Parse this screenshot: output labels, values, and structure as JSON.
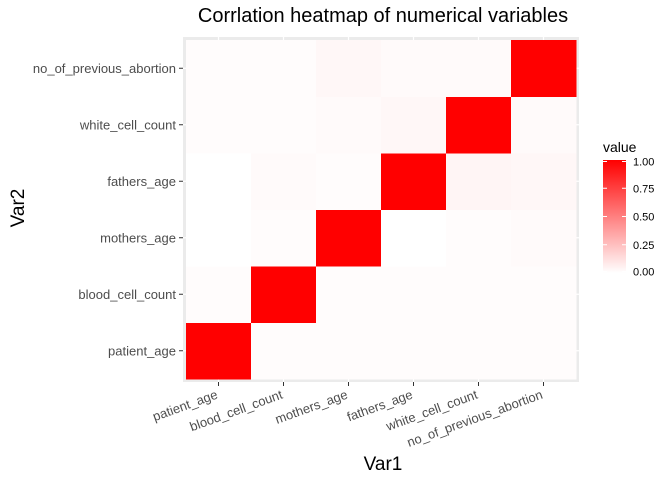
{
  "chart_data": {
    "type": "heatmap",
    "title": "Corrlation heatmap of numerical variables",
    "xlabel": "Var1",
    "ylabel": "Var2",
    "x_categories": [
      "patient_age",
      "blood_cell_count",
      "mothers_age",
      "fathers_age",
      "white_cell_count",
      "no_of_previous_abortion"
    ],
    "y_categories": [
      "patient_age",
      "blood_cell_count",
      "mothers_age",
      "fathers_age",
      "white_cell_count",
      "no_of_previous_abortion"
    ],
    "values": [
      [
        1.0,
        0.01,
        0.01,
        0.01,
        0.01,
        0.01
      ],
      [
        0.01,
        1.0,
        0.01,
        0.01,
        0.01,
        0.01
      ],
      [
        0.0,
        0.01,
        1.0,
        0.0,
        0.01,
        0.02
      ],
      [
        0.0,
        0.02,
        0.01,
        1.0,
        0.04,
        0.03
      ],
      [
        0.01,
        0.01,
        0.02,
        0.03,
        1.0,
        0.02
      ],
      [
        0.01,
        0.01,
        0.03,
        0.02,
        0.02,
        1.0
      ]
    ],
    "color_scale": {
      "low": "#ffffff",
      "high": "#ff0000",
      "min": 0,
      "max": 1
    },
    "legend": {
      "title": "value",
      "ticks": [
        "1.00",
        "0.75",
        "0.50",
        "0.25",
        "0.00"
      ],
      "tick_values": [
        1.0,
        0.75,
        0.5,
        0.25,
        0.0
      ],
      "position": "right"
    },
    "panel_background": "#ebebeb",
    "grid": true
  }
}
